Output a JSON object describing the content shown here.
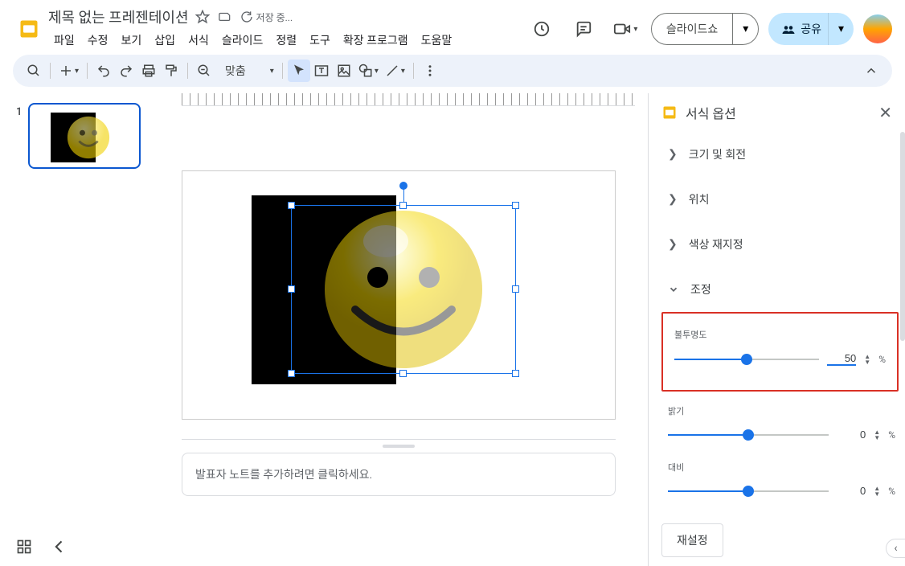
{
  "doc": {
    "title": "제목 없는 프레젠테이션",
    "save_status": "저장 중..."
  },
  "menus": {
    "file": "파일",
    "edit": "수정",
    "view": "보기",
    "insert": "삽입",
    "format": "서식",
    "slide": "슬라이드",
    "arrange": "정렬",
    "tools": "도구",
    "extensions": "확장 프로그램",
    "help": "도움말"
  },
  "header": {
    "slideshow": "슬라이드쇼",
    "share": "공유"
  },
  "toolbar": {
    "zoom_label": "맞춤"
  },
  "filmstrip": {
    "slide_number": "1"
  },
  "notes": {
    "placeholder": "발표자 노트를 추가하려면 클릭하세요."
  },
  "panel": {
    "title": "서식 옵션",
    "sections": {
      "size_rotation": "크기 및 회전",
      "position": "위치",
      "recolor": "색상 재지정",
      "adjustments": "조정"
    },
    "adjust": {
      "opacity_label": "불투명도",
      "opacity_value": "50",
      "opacity_percent": 50,
      "brightness_label": "밝기",
      "brightness_value": "0",
      "brightness_percent": 50,
      "contrast_label": "대비",
      "contrast_value": "0",
      "contrast_percent": 50,
      "unit": "%"
    },
    "reset": "재설정"
  },
  "colors": {
    "accent": "#1a73e8",
    "highlight": "#d93025",
    "share_bg": "#c2e7ff",
    "toolbar_bg": "#edf2fa"
  }
}
